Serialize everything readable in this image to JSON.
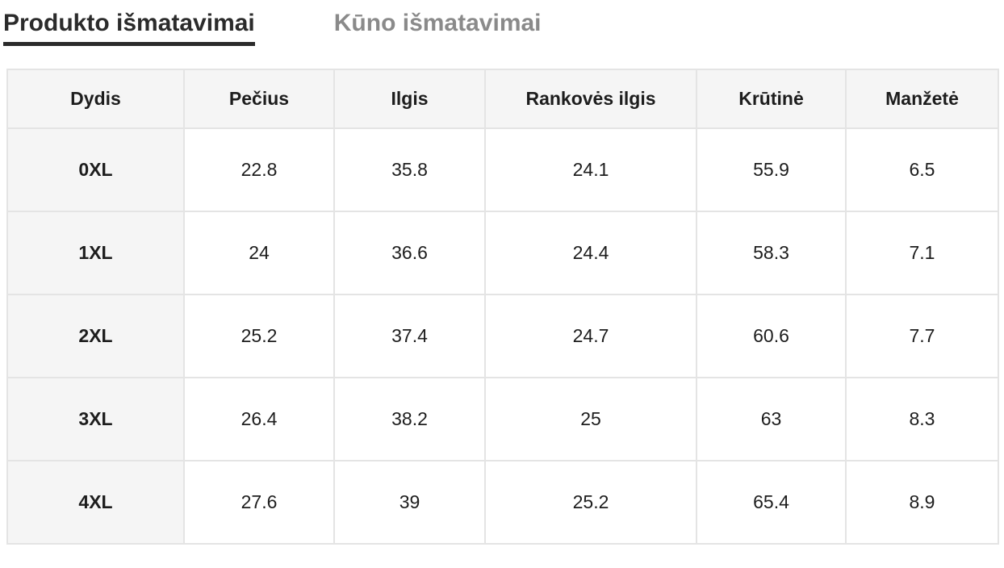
{
  "tabs": [
    {
      "label": "Produkto išmatavimai",
      "active": true
    },
    {
      "label": "Kūno išmatavimai",
      "active": false
    }
  ],
  "size_table": {
    "columns": [
      "Dydis",
      "Pečius",
      "Ilgis",
      "Rankovės ilgis",
      "Krūtinė",
      "Manžetė"
    ],
    "rows": [
      {
        "size": "0XL",
        "values": [
          "22.8",
          "35.8",
          "24.1",
          "55.9",
          "6.5"
        ]
      },
      {
        "size": "1XL",
        "values": [
          "24",
          "36.6",
          "24.4",
          "58.3",
          "7.1"
        ]
      },
      {
        "size": "2XL",
        "values": [
          "25.2",
          "37.4",
          "24.7",
          "60.6",
          "7.7"
        ]
      },
      {
        "size": "3XL",
        "values": [
          "26.4",
          "38.2",
          "25",
          "63",
          "8.3"
        ]
      },
      {
        "size": "4XL",
        "values": [
          "27.6",
          "39",
          "25.2",
          "65.4",
          "8.9"
        ]
      }
    ]
  },
  "colors": {
    "active_tab_text": "#2b2b2b",
    "active_tab_underline": "#2b2b2b",
    "inactive_tab_text": "#8a8a8a",
    "header_cell_bg": "#f5f5f5",
    "table_border": "#e4e4e4",
    "cell_text": "#1d1d1d",
    "page_bg": "#ffffff"
  }
}
